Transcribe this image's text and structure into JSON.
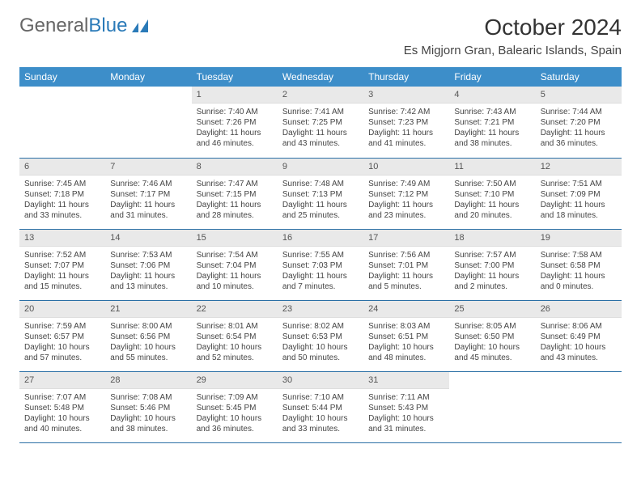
{
  "logo": {
    "text_gray": "General",
    "text_blue": "Blue"
  },
  "header": {
    "title": "October 2024",
    "location": "Es Migjorn Gran, Balearic Islands, Spain"
  },
  "colors": {
    "header_bg": "#3d8ec9",
    "daynum_bg": "#e9e9e9",
    "row_border": "#2a6fa5"
  },
  "weekdays": [
    "Sunday",
    "Monday",
    "Tuesday",
    "Wednesday",
    "Thursday",
    "Friday",
    "Saturday"
  ],
  "weeks": [
    [
      null,
      null,
      {
        "n": "1",
        "sr": "Sunrise: 7:40 AM",
        "ss": "Sunset: 7:26 PM",
        "dl": "Daylight: 11 hours and 46 minutes."
      },
      {
        "n": "2",
        "sr": "Sunrise: 7:41 AM",
        "ss": "Sunset: 7:25 PM",
        "dl": "Daylight: 11 hours and 43 minutes."
      },
      {
        "n": "3",
        "sr": "Sunrise: 7:42 AM",
        "ss": "Sunset: 7:23 PM",
        "dl": "Daylight: 11 hours and 41 minutes."
      },
      {
        "n": "4",
        "sr": "Sunrise: 7:43 AM",
        "ss": "Sunset: 7:21 PM",
        "dl": "Daylight: 11 hours and 38 minutes."
      },
      {
        "n": "5",
        "sr": "Sunrise: 7:44 AM",
        "ss": "Sunset: 7:20 PM",
        "dl": "Daylight: 11 hours and 36 minutes."
      }
    ],
    [
      {
        "n": "6",
        "sr": "Sunrise: 7:45 AM",
        "ss": "Sunset: 7:18 PM",
        "dl": "Daylight: 11 hours and 33 minutes."
      },
      {
        "n": "7",
        "sr": "Sunrise: 7:46 AM",
        "ss": "Sunset: 7:17 PM",
        "dl": "Daylight: 11 hours and 31 minutes."
      },
      {
        "n": "8",
        "sr": "Sunrise: 7:47 AM",
        "ss": "Sunset: 7:15 PM",
        "dl": "Daylight: 11 hours and 28 minutes."
      },
      {
        "n": "9",
        "sr": "Sunrise: 7:48 AM",
        "ss": "Sunset: 7:13 PM",
        "dl": "Daylight: 11 hours and 25 minutes."
      },
      {
        "n": "10",
        "sr": "Sunrise: 7:49 AM",
        "ss": "Sunset: 7:12 PM",
        "dl": "Daylight: 11 hours and 23 minutes."
      },
      {
        "n": "11",
        "sr": "Sunrise: 7:50 AM",
        "ss": "Sunset: 7:10 PM",
        "dl": "Daylight: 11 hours and 20 minutes."
      },
      {
        "n": "12",
        "sr": "Sunrise: 7:51 AM",
        "ss": "Sunset: 7:09 PM",
        "dl": "Daylight: 11 hours and 18 minutes."
      }
    ],
    [
      {
        "n": "13",
        "sr": "Sunrise: 7:52 AM",
        "ss": "Sunset: 7:07 PM",
        "dl": "Daylight: 11 hours and 15 minutes."
      },
      {
        "n": "14",
        "sr": "Sunrise: 7:53 AM",
        "ss": "Sunset: 7:06 PM",
        "dl": "Daylight: 11 hours and 13 minutes."
      },
      {
        "n": "15",
        "sr": "Sunrise: 7:54 AM",
        "ss": "Sunset: 7:04 PM",
        "dl": "Daylight: 11 hours and 10 minutes."
      },
      {
        "n": "16",
        "sr": "Sunrise: 7:55 AM",
        "ss": "Sunset: 7:03 PM",
        "dl": "Daylight: 11 hours and 7 minutes."
      },
      {
        "n": "17",
        "sr": "Sunrise: 7:56 AM",
        "ss": "Sunset: 7:01 PM",
        "dl": "Daylight: 11 hours and 5 minutes."
      },
      {
        "n": "18",
        "sr": "Sunrise: 7:57 AM",
        "ss": "Sunset: 7:00 PM",
        "dl": "Daylight: 11 hours and 2 minutes."
      },
      {
        "n": "19",
        "sr": "Sunrise: 7:58 AM",
        "ss": "Sunset: 6:58 PM",
        "dl": "Daylight: 11 hours and 0 minutes."
      }
    ],
    [
      {
        "n": "20",
        "sr": "Sunrise: 7:59 AM",
        "ss": "Sunset: 6:57 PM",
        "dl": "Daylight: 10 hours and 57 minutes."
      },
      {
        "n": "21",
        "sr": "Sunrise: 8:00 AM",
        "ss": "Sunset: 6:56 PM",
        "dl": "Daylight: 10 hours and 55 minutes."
      },
      {
        "n": "22",
        "sr": "Sunrise: 8:01 AM",
        "ss": "Sunset: 6:54 PM",
        "dl": "Daylight: 10 hours and 52 minutes."
      },
      {
        "n": "23",
        "sr": "Sunrise: 8:02 AM",
        "ss": "Sunset: 6:53 PM",
        "dl": "Daylight: 10 hours and 50 minutes."
      },
      {
        "n": "24",
        "sr": "Sunrise: 8:03 AM",
        "ss": "Sunset: 6:51 PM",
        "dl": "Daylight: 10 hours and 48 minutes."
      },
      {
        "n": "25",
        "sr": "Sunrise: 8:05 AM",
        "ss": "Sunset: 6:50 PM",
        "dl": "Daylight: 10 hours and 45 minutes."
      },
      {
        "n": "26",
        "sr": "Sunrise: 8:06 AM",
        "ss": "Sunset: 6:49 PM",
        "dl": "Daylight: 10 hours and 43 minutes."
      }
    ],
    [
      {
        "n": "27",
        "sr": "Sunrise: 7:07 AM",
        "ss": "Sunset: 5:48 PM",
        "dl": "Daylight: 10 hours and 40 minutes."
      },
      {
        "n": "28",
        "sr": "Sunrise: 7:08 AM",
        "ss": "Sunset: 5:46 PM",
        "dl": "Daylight: 10 hours and 38 minutes."
      },
      {
        "n": "29",
        "sr": "Sunrise: 7:09 AM",
        "ss": "Sunset: 5:45 PM",
        "dl": "Daylight: 10 hours and 36 minutes."
      },
      {
        "n": "30",
        "sr": "Sunrise: 7:10 AM",
        "ss": "Sunset: 5:44 PM",
        "dl": "Daylight: 10 hours and 33 minutes."
      },
      {
        "n": "31",
        "sr": "Sunrise: 7:11 AM",
        "ss": "Sunset: 5:43 PM",
        "dl": "Daylight: 10 hours and 31 minutes."
      },
      null,
      null
    ]
  ]
}
